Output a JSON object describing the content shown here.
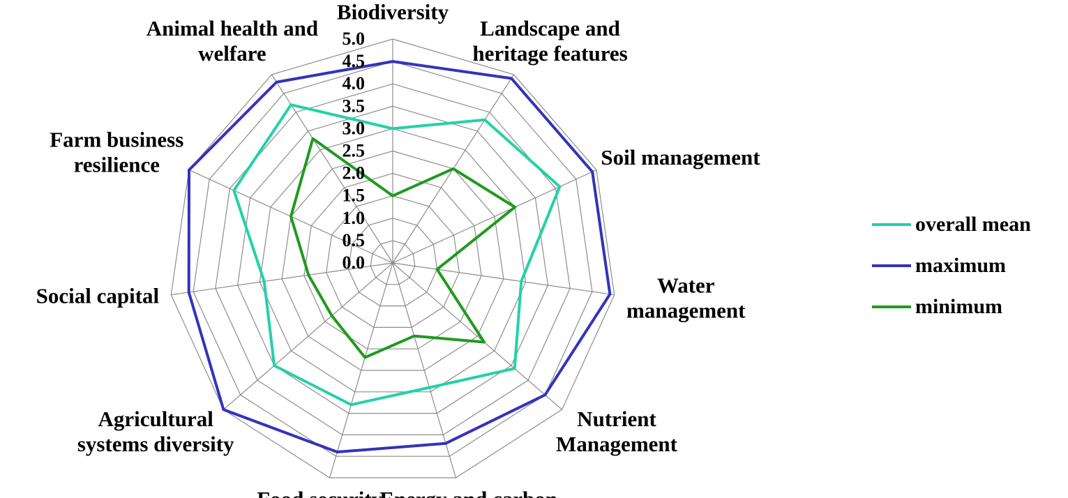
{
  "chart_data": {
    "type": "radar",
    "categories": [
      [
        "Biodiversity"
      ],
      [
        "Landscape and",
        "heritage features"
      ],
      [
        "Soil management"
      ],
      [
        "Water",
        "management"
      ],
      [
        "Nutrient",
        "Management"
      ],
      [
        "Energy and carbon"
      ],
      [
        "Food security"
      ],
      [
        "Agricultural",
        "systems diversity"
      ],
      [
        "Social capital"
      ],
      [
        "Farm business",
        "resilience"
      ],
      [
        "Animal health and",
        "welfare"
      ]
    ],
    "series": [
      {
        "name": "overall mean",
        "color": "#22d2a6",
        "values": [
          3.0,
          3.8,
          4.1,
          2.9,
          3.6,
          2.9,
          3.3,
          3.5,
          2.9,
          3.9,
          4.2
        ]
      },
      {
        "name": "maximum",
        "color": "#3333bb",
        "values": [
          4.5,
          4.9,
          4.9,
          4.9,
          4.5,
          4.2,
          4.4,
          5.0,
          4.6,
          5.0,
          4.8
        ]
      },
      {
        "name": "minimum",
        "color": "#1f9a1f",
        "values": [
          1.5,
          2.5,
          3.0,
          1.0,
          2.7,
          1.7,
          2.2,
          1.8,
          1.9,
          2.5,
          3.3
        ]
      }
    ],
    "ylim": [
      0,
      5
    ],
    "yticks": [
      {
        "value": 0,
        "label": "0.0"
      },
      0.5,
      {
        "value": 1,
        "label": "1.0"
      },
      1.5,
      {
        "value": 2,
        "label": "2.0"
      },
      2.5,
      {
        "value": 3,
        "label": "3.0"
      },
      3.5,
      {
        "value": 4,
        "label": "4.0"
      },
      4.5,
      {
        "value": 5,
        "label": "5.0"
      }
    ],
    "grid": true,
    "legend": "right"
  }
}
